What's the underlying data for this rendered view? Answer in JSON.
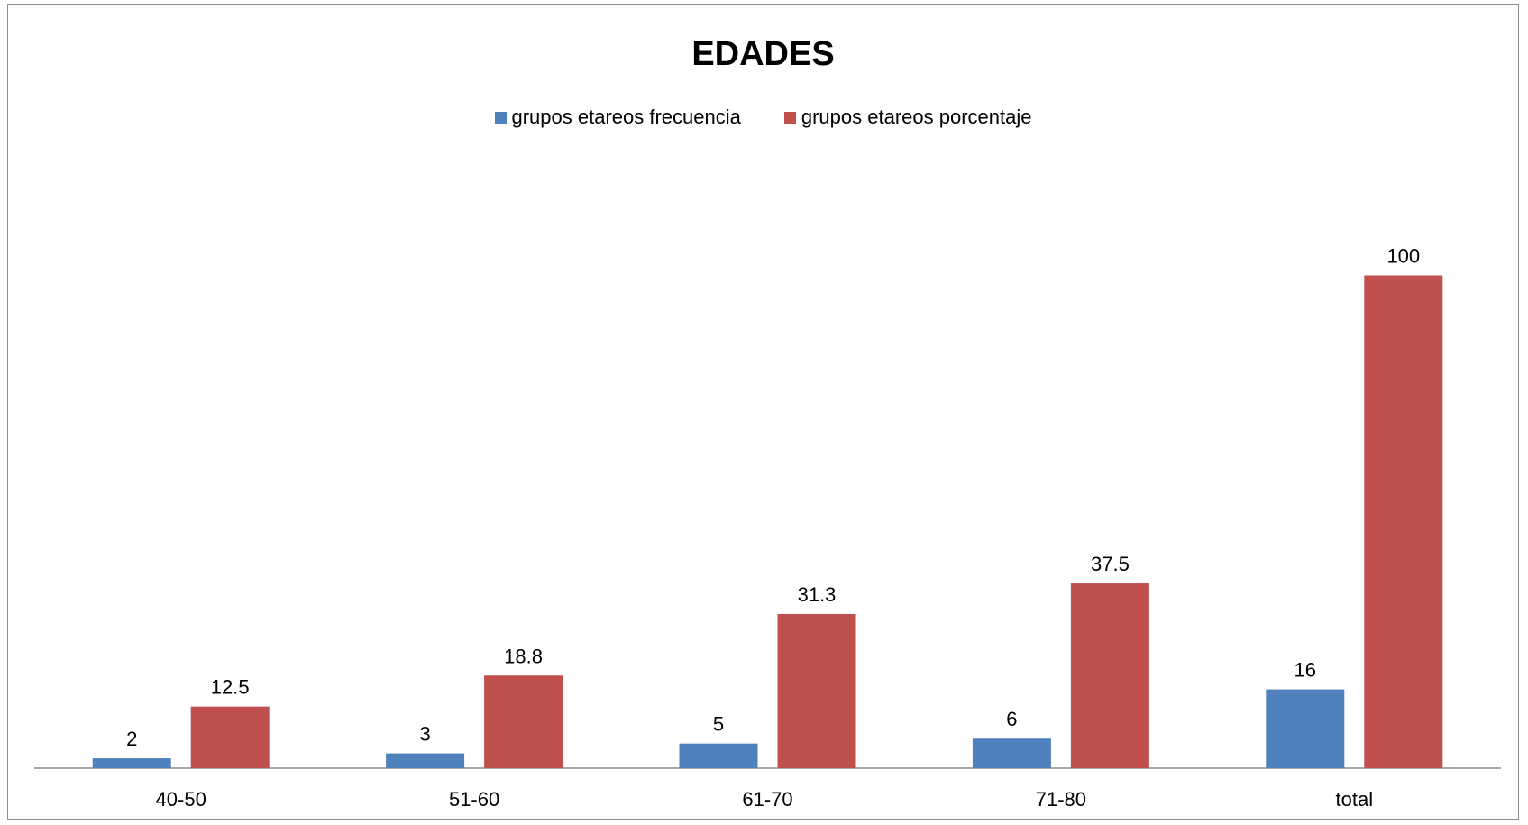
{
  "chart_data": {
    "type": "bar",
    "title": "EDADES",
    "categories": [
      "40-50",
      "51-60",
      "61-70",
      "71-80",
      "total"
    ],
    "series": [
      {
        "name": "grupos etareos frecuencia",
        "values": [
          2,
          3,
          5,
          6,
          16
        ],
        "color": "#4f81bd"
      },
      {
        "name": "grupos etareos porcentaje",
        "values": [
          12.5,
          18.8,
          31.3,
          37.5,
          100
        ],
        "color": "#c0504d"
      }
    ],
    "data_labels": [
      [
        "2",
        "3",
        "5",
        "6",
        "16"
      ],
      [
        "12.5",
        "18.8",
        "31.3",
        "37.5",
        "100"
      ]
    ],
    "xlabel": "",
    "ylabel": "",
    "ylim": [
      0,
      120
    ],
    "grid": false,
    "legend_position": "top"
  }
}
